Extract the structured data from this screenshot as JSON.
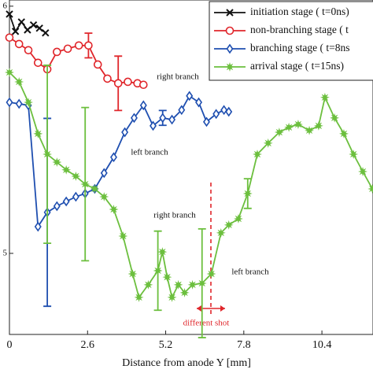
{
  "chart_data": {
    "type": "line",
    "xlabel": "Distance from anode Y [mm]",
    "xlim": [
      0,
      12.1
    ],
    "xticks": [
      0,
      2.6,
      5.2,
      7.8,
      10.4
    ],
    "ylim": [
      4.672,
      6.025
    ],
    "yticks": [
      5,
      6
    ],
    "legend": "upper right",
    "series": [
      {
        "name": "initiation stage ( t=0ns)",
        "color": "#111111",
        "marker": "x",
        "x": [
          0,
          0.2,
          0.4,
          0.6,
          0.8,
          1.0,
          1.2
        ],
        "values": [
          5.968,
          5.898,
          5.936,
          5.904,
          5.924,
          5.911,
          5.892
        ]
      },
      {
        "name": "non-branching stage ( t",
        "color": "#e0262b",
        "marker": "circle",
        "x": [
          0,
          0.32,
          0.63,
          0.95,
          1.26,
          1.58,
          1.94,
          2.31,
          2.63,
          2.94,
          3.26,
          3.62,
          3.94,
          4.26,
          4.46
        ],
        "values": [
          5.873,
          5.847,
          5.822,
          5.771,
          5.745,
          5.815,
          5.828,
          5.841,
          5.841,
          5.764,
          5.707,
          5.688,
          5.694,
          5.688,
          5.682
        ],
        "errors": [
          null,
          null,
          null,
          null,
          null,
          null,
          null,
          null,
          0.05,
          null,
          null,
          0.11,
          null,
          null,
          null
        ]
      },
      {
        "name": "branching stage ( t=8ns",
        "color": "#1f4fb0",
        "marker": "diamond",
        "x": [
          0,
          0.32,
          0.63,
          0.95,
          1.26,
          1.58,
          1.89,
          2.21,
          2.52,
          2.84,
          3.15,
          3.47,
          3.84,
          4.15,
          4.46,
          4.78,
          5.1,
          5.41,
          5.73,
          5.99,
          6.3,
          6.56,
          6.88,
          7.14,
          7.3
        ],
        "values": [
          5.611,
          5.605,
          5.599,
          5.108,
          5.166,
          5.191,
          5.21,
          5.229,
          5.242,
          5.261,
          5.325,
          5.389,
          5.49,
          5.548,
          5.599,
          5.516,
          5.548,
          5.541,
          5.58,
          5.637,
          5.611,
          5.532,
          5.564,
          5.58,
          5.573
        ],
        "errors": [
          null,
          null,
          null,
          null,
          0.38,
          null,
          null,
          null,
          null,
          null,
          null,
          null,
          null,
          null,
          null,
          null,
          0.03,
          null,
          null,
          null,
          null,
          null,
          null,
          null,
          null
        ]
      },
      {
        "name": "arrival stage ( t=15ns)",
        "color": "#6cbf3e",
        "marker": "star",
        "x": [
          0,
          0.32,
          0.63,
          0.95,
          1.26,
          1.58,
          1.89,
          2.21,
          2.52,
          2.84,
          3.15,
          3.47,
          3.78,
          4.1,
          4.31,
          4.62,
          4.94,
          5.09,
          5.25,
          5.41,
          5.62,
          5.83,
          6.09,
          6.41,
          6.72,
          7.04,
          7.3,
          7.62,
          7.93,
          8.25,
          8.61,
          8.98,
          9.3,
          9.61,
          9.98,
          10.29,
          10.5,
          10.82,
          11.13,
          11.45,
          11.76,
          12.08
        ],
        "values": [
          5.732,
          5.694,
          5.611,
          5.484,
          5.401,
          5.369,
          5.338,
          5.312,
          5.28,
          5.261,
          5.229,
          5.178,
          5.07,
          4.917,
          4.822,
          4.873,
          4.93,
          5.006,
          4.904,
          4.822,
          4.873,
          4.841,
          4.873,
          4.879,
          4.917,
          5.083,
          5.115,
          5.14,
          5.242,
          5.401,
          5.446,
          5.49,
          5.51,
          5.522,
          5.497,
          5.516,
          5.631,
          5.548,
          5.484,
          5.401,
          5.331,
          5.261
        ],
        "errors": [
          null,
          null,
          null,
          null,
          0.36,
          null,
          null,
          null,
          0.31,
          null,
          null,
          null,
          null,
          null,
          null,
          null,
          0.16,
          null,
          null,
          null,
          null,
          null,
          null,
          0.22,
          null,
          null,
          null,
          null,
          0.06,
          null,
          null,
          null,
          null,
          null,
          null,
          null,
          null,
          null,
          null,
          null,
          null,
          null
        ]
      }
    ],
    "annotations": [
      "right branch",
      "left branch",
      "right branch",
      "left branch",
      "different shot"
    ]
  }
}
